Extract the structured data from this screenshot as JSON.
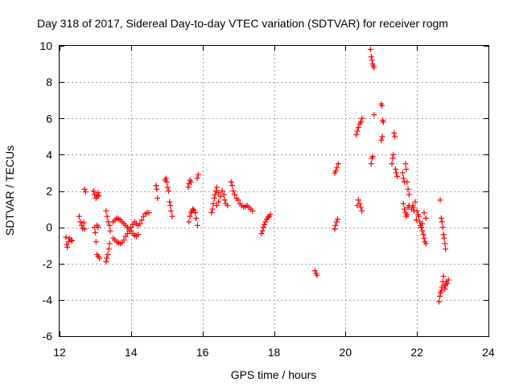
{
  "chart_data": {
    "type": "scatter",
    "title": "Day 318 of 2017, Sidereal Day-to-day VTEC variation (SDTVAR) for receiver rogm",
    "xlabel": "GPS time / hours",
    "ylabel": "SDTVAR / TECUs",
    "xlim": [
      12,
      24
    ],
    "ylim": [
      -6,
      10
    ],
    "xticks": [
      12,
      14,
      16,
      18,
      20,
      22,
      24
    ],
    "yticks": [
      -6,
      -4,
      -2,
      0,
      2,
      4,
      6,
      8,
      10
    ],
    "grid": true,
    "marker": "+",
    "color": "#ff0000",
    "series": [
      {
        "name": "SDTVAR",
        "points": [
          [
            12.18,
            -0.55
          ],
          [
            12.2,
            -0.95
          ],
          [
            12.22,
            -1.1
          ],
          [
            12.25,
            -0.8
          ],
          [
            12.28,
            -0.6
          ],
          [
            12.32,
            -0.7
          ],
          [
            12.35,
            -0.75
          ],
          [
            12.55,
            0.6
          ],
          [
            12.58,
            0.3
          ],
          [
            12.62,
            0.1
          ],
          [
            12.65,
            -0.05
          ],
          [
            12.68,
            0.25
          ],
          [
            12.7,
            -0.1
          ],
          [
            12.7,
            2.1
          ],
          [
            12.73,
            1.95
          ],
          [
            12.95,
            2.0
          ],
          [
            12.98,
            1.8
          ],
          [
            13.02,
            1.6
          ],
          [
            13.05,
            1.7
          ],
          [
            13.08,
            1.9
          ],
          [
            13.1,
            1.75
          ],
          [
            12.98,
            0.0
          ],
          [
            13.0,
            -0.3
          ],
          [
            13.02,
            -0.8
          ],
          [
            13.05,
            -1.5
          ],
          [
            13.08,
            -1.6
          ],
          [
            13.12,
            -1.7
          ],
          [
            13.05,
            0.1
          ],
          [
            13.08,
            0.0
          ],
          [
            13.3,
            -1.9
          ],
          [
            13.32,
            -1.7
          ],
          [
            13.35,
            -1.5
          ],
          [
            13.38,
            -1.2
          ],
          [
            13.4,
            -0.9
          ],
          [
            13.3,
            0.9
          ],
          [
            13.33,
            0.6
          ],
          [
            13.36,
            0.3
          ],
          [
            13.4,
            0.1
          ],
          [
            13.42,
            -0.2
          ],
          [
            13.5,
            0.3
          ],
          [
            13.55,
            0.4
          ],
          [
            13.6,
            0.5
          ],
          [
            13.65,
            0.45
          ],
          [
            13.7,
            0.4
          ],
          [
            13.75,
            0.3
          ],
          [
            13.8,
            0.2
          ],
          [
            13.85,
            0.1
          ],
          [
            13.9,
            0.0
          ],
          [
            13.95,
            -0.1
          ],
          [
            14.0,
            -0.2
          ],
          [
            14.05,
            -0.35
          ],
          [
            14.1,
            -0.45
          ],
          [
            14.15,
            -0.5
          ],
          [
            14.2,
            -0.4
          ],
          [
            13.5,
            -0.6
          ],
          [
            13.55,
            -0.7
          ],
          [
            13.6,
            -0.8
          ],
          [
            13.65,
            -0.85
          ],
          [
            13.7,
            -0.9
          ],
          [
            13.75,
            -0.85
          ],
          [
            13.8,
            -0.7
          ],
          [
            13.85,
            -0.5
          ],
          [
            13.9,
            -0.35
          ],
          [
            13.95,
            -0.2
          ],
          [
            14.0,
            0.0
          ],
          [
            14.05,
            0.15
          ],
          [
            14.1,
            0.3
          ],
          [
            14.15,
            0.2
          ],
          [
            14.2,
            0.1
          ],
          [
            14.25,
            0.2
          ],
          [
            14.3,
            0.4
          ],
          [
            14.35,
            0.6
          ],
          [
            14.4,
            0.75
          ],
          [
            14.45,
            0.8
          ],
          [
            14.5,
            0.8
          ],
          [
            14.7,
            2.3
          ],
          [
            14.72,
            2.1
          ],
          [
            14.74,
            1.6
          ],
          [
            14.95,
            2.6
          ],
          [
            14.98,
            2.7
          ],
          [
            15.0,
            2.5
          ],
          [
            15.02,
            2.2
          ],
          [
            15.05,
            2.0
          ],
          [
            15.08,
            1.4
          ],
          [
            15.1,
            1.2
          ],
          [
            15.12,
            0.9
          ],
          [
            15.15,
            0.6
          ],
          [
            15.6,
            2.2
          ],
          [
            15.62,
            2.4
          ],
          [
            15.65,
            2.6
          ],
          [
            15.68,
            2.5
          ],
          [
            15.85,
            2.7
          ],
          [
            15.88,
            2.9
          ],
          [
            15.62,
            0.3
          ],
          [
            15.65,
            0.6
          ],
          [
            15.68,
            0.8
          ],
          [
            15.7,
            0.9
          ],
          [
            15.73,
            1.0
          ],
          [
            15.76,
            0.95
          ],
          [
            15.8,
            0.8
          ],
          [
            15.82,
            0.5
          ],
          [
            15.86,
            0.1
          ],
          [
            16.25,
            0.8
          ],
          [
            16.28,
            1.0
          ],
          [
            16.3,
            1.3
          ],
          [
            16.33,
            1.6
          ],
          [
            16.35,
            1.8
          ],
          [
            16.38,
            2.0
          ],
          [
            16.4,
            2.2
          ],
          [
            16.45,
            1.9
          ],
          [
            16.5,
            1.7
          ],
          [
            16.55,
            2.0
          ],
          [
            16.6,
            1.8
          ],
          [
            16.62,
            1.5
          ],
          [
            16.65,
            1.3
          ],
          [
            16.7,
            1.2
          ],
          [
            16.4,
            1.2
          ],
          [
            16.45,
            1.4
          ],
          [
            16.8,
            2.5
          ],
          [
            16.83,
            2.3
          ],
          [
            16.86,
            2.0
          ],
          [
            16.9,
            1.8
          ],
          [
            16.95,
            1.6
          ],
          [
            17.0,
            1.5
          ],
          [
            17.05,
            1.3
          ],
          [
            17.1,
            1.2
          ],
          [
            17.15,
            1.1
          ],
          [
            17.2,
            1.15
          ],
          [
            17.25,
            1.2
          ],
          [
            17.3,
            1.1
          ],
          [
            17.35,
            1.0
          ],
          [
            17.4,
            0.9
          ],
          [
            17.65,
            -0.35
          ],
          [
            17.68,
            -0.2
          ],
          [
            17.7,
            0.0
          ],
          [
            17.73,
            0.15
          ],
          [
            17.76,
            0.3
          ],
          [
            17.8,
            0.45
          ],
          [
            17.83,
            0.55
          ],
          [
            17.86,
            0.6
          ],
          [
            17.9,
            0.7
          ],
          [
            19.15,
            -2.4
          ],
          [
            19.18,
            -2.55
          ],
          [
            19.2,
            -2.65
          ],
          [
            19.7,
            -0.1
          ],
          [
            19.72,
            0.1
          ],
          [
            19.75,
            0.3
          ],
          [
            19.78,
            0.45
          ],
          [
            19.7,
            3.0
          ],
          [
            19.73,
            3.1
          ],
          [
            19.76,
            3.3
          ],
          [
            19.8,
            3.5
          ],
          [
            20.3,
            5.1
          ],
          [
            20.33,
            5.3
          ],
          [
            20.36,
            5.5
          ],
          [
            20.4,
            5.7
          ],
          [
            20.43,
            5.8
          ],
          [
            20.46,
            6.0
          ],
          [
            20.33,
            1.2
          ],
          [
            20.36,
            1.5
          ],
          [
            20.4,
            1.3
          ],
          [
            20.43,
            1.1
          ],
          [
            20.46,
            0.9
          ],
          [
            20.7,
            9.8
          ],
          [
            20.72,
            9.4
          ],
          [
            20.74,
            9.2
          ],
          [
            20.76,
            9.0
          ],
          [
            20.78,
            8.9
          ],
          [
            20.8,
            8.8
          ],
          [
            20.72,
            3.5
          ],
          [
            20.74,
            3.8
          ],
          [
            20.76,
            3.9
          ],
          [
            20.8,
            6.2
          ],
          [
            21.0,
            6.8
          ],
          [
            21.02,
            6.7
          ],
          [
            21.04,
            5.9
          ],
          [
            21.06,
            5.8
          ],
          [
            21.0,
            4.8
          ],
          [
            21.03,
            5.0
          ],
          [
            21.3,
            3.5
          ],
          [
            21.32,
            3.8
          ],
          [
            21.34,
            4.0
          ],
          [
            21.36,
            5.2
          ],
          [
            21.38,
            5.0
          ],
          [
            21.4,
            3.2
          ],
          [
            21.42,
            3.0
          ],
          [
            21.45,
            2.8
          ],
          [
            21.6,
            3.0
          ],
          [
            21.62,
            2.7
          ],
          [
            21.65,
            2.5
          ],
          [
            21.68,
            3.5
          ],
          [
            21.7,
            3.2
          ],
          [
            21.72,
            2.5
          ],
          [
            21.75,
            2.1
          ],
          [
            21.78,
            1.8
          ],
          [
            21.62,
            1.3
          ],
          [
            21.65,
            1.0
          ],
          [
            21.68,
            0.8
          ],
          [
            21.7,
            0.6
          ],
          [
            21.72,
            0.7
          ],
          [
            21.75,
            1.1
          ],
          [
            21.78,
            1.2
          ],
          [
            21.85,
            1.0
          ],
          [
            21.88,
            1.2
          ],
          [
            21.9,
            1.1
          ],
          [
            21.92,
            0.9
          ],
          [
            21.95,
            1.4
          ],
          [
            21.98,
            0.4
          ],
          [
            22.0,
            0.9
          ],
          [
            22.03,
            0.7
          ],
          [
            22.05,
            0.6
          ],
          [
            22.08,
            0.3
          ],
          [
            22.1,
            0.1
          ],
          [
            22.12,
            0.0
          ],
          [
            22.15,
            -0.2
          ],
          [
            22.18,
            -0.4
          ],
          [
            22.2,
            -0.6
          ],
          [
            22.22,
            -0.8
          ],
          [
            22.25,
            -0.9
          ],
          [
            22.15,
            0.2
          ],
          [
            22.2,
            0.8
          ],
          [
            22.25,
            0.5
          ],
          [
            22.62,
            -4.1
          ],
          [
            22.64,
            -3.8
          ],
          [
            22.66,
            -3.6
          ],
          [
            22.68,
            -3.5
          ],
          [
            22.7,
            -3.3
          ],
          [
            22.72,
            -3.0
          ],
          [
            22.74,
            -2.7
          ],
          [
            22.76,
            -3.2
          ],
          [
            22.78,
            -3.4
          ],
          [
            22.8,
            -3.2
          ],
          [
            22.82,
            -3.0
          ],
          [
            22.85,
            -3.1
          ],
          [
            22.88,
            -2.9
          ],
          [
            22.65,
            1.5
          ],
          [
            22.68,
            0.5
          ],
          [
            22.7,
            0.3
          ],
          [
            22.72,
            0.0
          ],
          [
            22.74,
            -0.4
          ],
          [
            22.76,
            -0.6
          ],
          [
            22.78,
            -0.9
          ],
          [
            22.8,
            -1.2
          ]
        ]
      }
    ]
  }
}
